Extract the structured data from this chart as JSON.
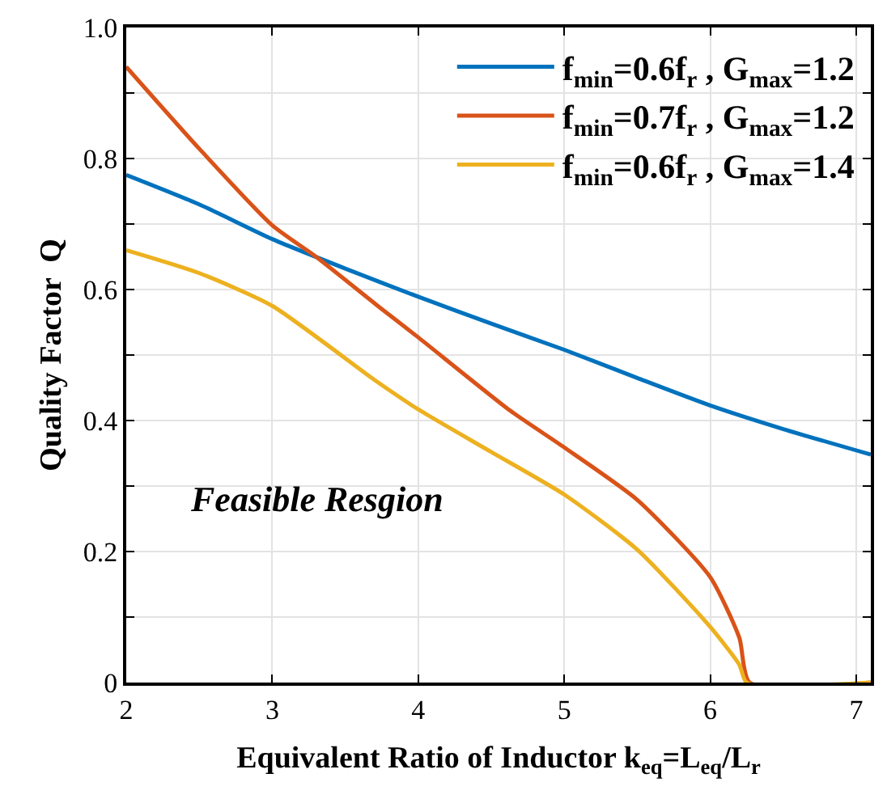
{
  "chart_data": {
    "type": "line",
    "xlabel": "Equivalent Ratio of Inductor k$_{eq}$=L$_{eq}$/L$_{r}$",
    "ylabel": "Quality Factor  Q",
    "annotations": [
      "Feasible Resgion"
    ],
    "series": [
      {
        "name": "f$_{min}$=0.6f$_{r}$ , G$_{max}$=1.2",
        "color": "#0072bd",
        "x": [
          2,
          2.5,
          3,
          3.5,
          4,
          4.5,
          5,
          5.5,
          6,
          6.5,
          7.1
        ],
        "values": [
          0.775,
          0.73,
          0.677,
          0.632,
          0.589,
          0.548,
          0.508,
          0.465,
          0.423,
          0.387,
          0.348
        ]
      },
      {
        "name": "f$_{min}$=0.7f$_{r}$ , G$_{max}$=1.2",
        "color": "#d95319",
        "x": [
          2,
          2.5,
          3,
          3.3,
          3.74,
          4,
          4.63,
          5,
          5.5,
          6,
          6.2,
          6.27,
          7.1
        ],
        "values": [
          0.94,
          0.815,
          0.698,
          0.65,
          0.572,
          0.527,
          0.415,
          0.359,
          0.279,
          0.161,
          0.068,
          0,
          0
        ]
      },
      {
        "name": "f$_{min}$=0.6f$_{r}$ , G$_{max}$=1.4",
        "color": "#edb120",
        "x": [
          2,
          2.5,
          3,
          3.7,
          4,
          4.5,
          5,
          5.5,
          6,
          6.2,
          6.25,
          7.1
        ],
        "values": [
          0.66,
          0.625,
          0.575,
          0.462,
          0.417,
          0.352,
          0.287,
          0.203,
          0.085,
          0.027,
          0,
          0
        ]
      }
    ],
    "xlim": [
      2,
      7.1
    ],
    "xticks": [
      2,
      3,
      4,
      5,
      6,
      7
    ],
    "ylim": [
      0,
      1
    ],
    "yticks": [
      0,
      {
        "value": 0.1,
        "label": null
      },
      0.2,
      {
        "value": 0.3,
        "label": null
      },
      0.4,
      {
        "value": 0.5,
        "label": null
      },
      0.6,
      {
        "value": 0.7,
        "label": null
      },
      0.8,
      {
        "value": 0.9,
        "label": null
      },
      "1.0"
    ],
    "grid": true,
    "legend": "top right",
    "marker": "none",
    "line_style": "solid"
  }
}
